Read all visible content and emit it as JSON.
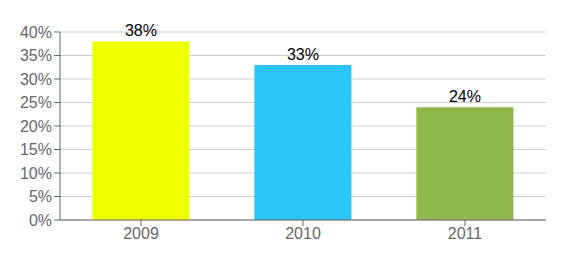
{
  "chart_data": {
    "type": "bar",
    "categories": [
      "2009",
      "2010",
      "2011"
    ],
    "values": [
      0.38,
      0.33,
      0.24
    ],
    "value_labels": [
      "38%",
      "33%",
      "24%"
    ],
    "data_labels": true,
    "colors": [
      "#EEFF00",
      "#29C5F6",
      "#8DB84A"
    ],
    "ylim": [
      0,
      0.4
    ],
    "yticks": [
      {
        "value": 0.0,
        "label": "0%"
      },
      {
        "value": 0.05,
        "label": "5%"
      },
      {
        "value": 0.1,
        "label": "10%"
      },
      {
        "value": 0.15,
        "label": "15%"
      },
      {
        "value": 0.2,
        "label": "20%"
      },
      {
        "value": 0.25,
        "label": "25%"
      },
      {
        "value": 0.3,
        "label": "30%"
      },
      {
        "value": 0.35,
        "label": "35%"
      },
      {
        "value": 0.4,
        "label": "40%"
      }
    ],
    "grid": true
  }
}
